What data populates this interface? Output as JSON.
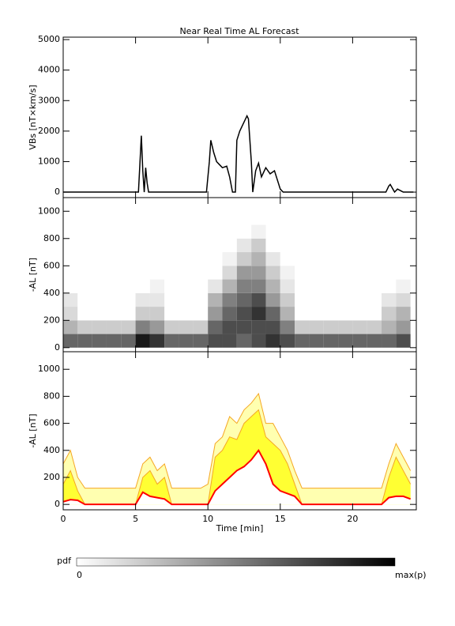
{
  "chart_data": [
    {
      "type": "line",
      "title": "Near Real Time AL Forecast",
      "ylabel": "VBs [nT×km/s]",
      "color": "#000000",
      "x": [
        0,
        5.2,
        5.4,
        5.5,
        5.6,
        5.7,
        5.8,
        5.9,
        6.0,
        9.9,
        10.1,
        10.2,
        10.4,
        10.6,
        10.8,
        11.0,
        11.3,
        11.5,
        11.7,
        11.9,
        12.0,
        12.2,
        12.5,
        12.7,
        12.8,
        13.0,
        13.1,
        13.3,
        13.5,
        13.7,
        14.0,
        14.3,
        14.6,
        15.0,
        15.2,
        15.4,
        22.3,
        22.5,
        22.6,
        22.9,
        23.1,
        23.5,
        24.2
      ],
      "values": [
        0,
        0,
        1850,
        700,
        0,
        800,
        300,
        0,
        0,
        0,
        1000,
        1700,
        1300,
        1000,
        900,
        800,
        850,
        500,
        0,
        0,
        1700,
        2000,
        2300,
        2500,
        2400,
        1000,
        0,
        700,
        950,
        500,
        800,
        600,
        700,
        100,
        0,
        0,
        0,
        200,
        250,
        0,
        100,
        0,
        0
      ],
      "xlim": [
        0,
        24.4
      ],
      "ylim": [
        -180,
        5080
      ],
      "yticks": [
        0,
        1000,
        2000,
        3000,
        4000,
        5000
      ],
      "xticks": [
        0,
        5,
        10,
        15,
        20
      ]
    },
    {
      "type": "heatmap",
      "ylabel": "-AL [nT]",
      "x": [
        0,
        1,
        2,
        3,
        4,
        5,
        6,
        7,
        8,
        9,
        10,
        11,
        12,
        13,
        14,
        15,
        16,
        17,
        18,
        19,
        20,
        21,
        22,
        23,
        24
      ],
      "y": [
        0,
        100,
        200,
        300,
        400,
        500,
        600,
        700,
        800,
        900
      ],
      "z": [
        [
          0.6,
          0.6,
          0.6,
          0.6,
          0.6,
          0.9,
          0.8,
          0.6,
          0.6,
          0.6,
          0.7,
          0.7,
          0.6,
          0.7,
          0.8,
          0.7,
          0.6,
          0.6,
          0.6,
          0.6,
          0.6,
          0.6,
          0.6,
          0.7
        ],
        [
          0.3,
          0.2,
          0.2,
          0.2,
          0.2,
          0.5,
          0.4,
          0.2,
          0.2,
          0.2,
          0.6,
          0.7,
          0.7,
          0.7,
          0.7,
          0.5,
          0.2,
          0.2,
          0.2,
          0.2,
          0.2,
          0.2,
          0.3,
          0.4
        ],
        [
          0.15,
          0,
          0,
          0,
          0,
          0.2,
          0.2,
          0,
          0,
          0,
          0.4,
          0.6,
          0.7,
          0.8,
          0.6,
          0.3,
          0,
          0,
          0,
          0,
          0,
          0,
          0.2,
          0.3
        ],
        [
          0.1,
          0,
          0,
          0,
          0,
          0.1,
          0.1,
          0,
          0,
          0,
          0.3,
          0.5,
          0.6,
          0.7,
          0.4,
          0.2,
          0,
          0,
          0,
          0,
          0,
          0,
          0.1,
          0.15
        ],
        [
          0,
          0,
          0,
          0,
          0,
          0,
          0.05,
          0,
          0,
          0,
          0.1,
          0.3,
          0.5,
          0.5,
          0.3,
          0.1,
          0,
          0,
          0,
          0,
          0,
          0,
          0,
          0.05
        ],
        [
          0,
          0,
          0,
          0,
          0,
          0,
          0,
          0,
          0,
          0,
          0,
          0.15,
          0.4,
          0.4,
          0.2,
          0.05,
          0,
          0,
          0,
          0,
          0,
          0,
          0,
          0
        ],
        [
          0,
          0,
          0,
          0,
          0,
          0,
          0,
          0,
          0,
          0,
          0,
          0.05,
          0.2,
          0.3,
          0.1,
          0,
          0,
          0,
          0,
          0,
          0,
          0,
          0,
          0
        ],
        [
          0,
          0,
          0,
          0,
          0,
          0,
          0,
          0,
          0,
          0,
          0,
          0,
          0.1,
          0.2,
          0,
          0,
          0,
          0,
          0,
          0,
          0,
          0,
          0,
          0
        ],
        [
          0,
          0,
          0,
          0,
          0,
          0,
          0,
          0,
          0,
          0,
          0,
          0,
          0,
          0.05,
          0,
          0,
          0,
          0,
          0,
          0,
          0,
          0,
          0,
          0
        ]
      ],
      "xlim": [
        0,
        24.4
      ],
      "ylim": [
        -30,
        1100
      ],
      "yticks": [
        0,
        200,
        400,
        600,
        800,
        1000
      ],
      "xticks": [
        0,
        5,
        10,
        15,
        20
      ]
    },
    {
      "type": "area",
      "ylabel": "-AL [nT]",
      "xlabel": "Time [min]",
      "x": [
        0,
        0.5,
        1,
        1.5,
        2,
        2.5,
        3,
        3.5,
        4,
        4.5,
        5,
        5.5,
        6,
        6.5,
        7,
        7.5,
        8,
        8.5,
        9,
        9.5,
        10,
        10.5,
        11,
        11.5,
        12,
        12.5,
        13,
        13.5,
        14,
        14.5,
        15,
        15.5,
        16,
        16.5,
        17,
        17.5,
        18,
        18.5,
        19,
        19.5,
        20,
        20.5,
        21,
        21.5,
        22,
        22.5,
        23,
        23.5,
        24
      ],
      "series": [
        {
          "color": "#f5a623",
          "fill": "#ffffb0",
          "values": [
            300,
            400,
            200,
            120,
            120,
            120,
            120,
            120,
            120,
            120,
            120,
            300,
            350,
            250,
            300,
            120,
            120,
            120,
            120,
            120,
            150,
            450,
            500,
            650,
            600,
            700,
            750,
            820,
            600,
            600,
            500,
            400,
            250,
            120,
            120,
            120,
            120,
            120,
            120,
            120,
            120,
            120,
            120,
            120,
            120,
            300,
            450,
            350,
            250
          ]
        },
        {
          "color": "#f5a623",
          "fill": "#ffff33",
          "values": [
            150,
            250,
            100,
            0,
            0,
            0,
            0,
            0,
            0,
            0,
            0,
            200,
            250,
            150,
            200,
            0,
            0,
            0,
            0,
            0,
            0,
            350,
            400,
            500,
            480,
            600,
            650,
            700,
            500,
            450,
            400,
            300,
            150,
            0,
            0,
            0,
            0,
            0,
            0,
            0,
            0,
            0,
            0,
            0,
            0,
            200,
            350,
            250,
            150
          ]
        },
        {
          "color": "#ff0000",
          "fill": "#ffffff",
          "values": [
            20,
            35,
            30,
            0,
            0,
            0,
            0,
            0,
            0,
            0,
            0,
            90,
            60,
            50,
            40,
            0,
            0,
            0,
            0,
            0,
            0,
            100,
            150,
            200,
            250,
            280,
            330,
            400,
            300,
            150,
            100,
            80,
            60,
            0,
            0,
            0,
            0,
            0,
            0,
            0,
            0,
            0,
            0,
            0,
            0,
            50,
            60,
            60,
            40
          ]
        }
      ],
      "xlim": [
        0,
        24.4
      ],
      "ylim": [
        -40,
        1130
      ],
      "yticks": [
        0,
        200,
        400,
        600,
        800,
        1000
      ],
      "xticks": [
        0,
        5,
        10,
        15,
        20
      ]
    }
  ],
  "colorbar": {
    "label": "pdf",
    "ticks": [
      0,
      {
        "value": 1,
        "label": "max(p)"
      }
    ]
  }
}
